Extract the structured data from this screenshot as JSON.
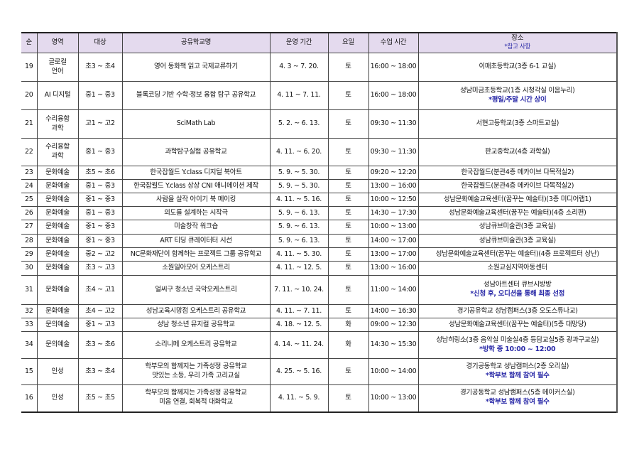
{
  "header": {
    "no": "순",
    "area": "영역",
    "target": "대상",
    "name": "공유학교명",
    "period": "운영 기간",
    "day": "요일",
    "time": "수업 시간",
    "place": "장소",
    "place_note": "*참고 사항"
  },
  "colors": {
    "header_bg": "#e4daee",
    "note": "#2b2ba8"
  },
  "rows": [
    {
      "no": "19",
      "area": [
        "글로컬",
        "언어"
      ],
      "target": "초3 ~ 초4",
      "name": [
        "영어 동화책 읽고 국제교류하기"
      ],
      "period": "4. 3 ~ 7. 20.",
      "day": "토",
      "time": "16:00 ~ 18:00",
      "place": "이매초등학교(3층 6-1 교실)",
      "note": ""
    },
    {
      "no": "20",
      "area": [
        "AI 디지털"
      ],
      "target": "중1 ~ 중3",
      "name": [
        "블록코딩 기반 수학·정보 융합 탐구 공유학교"
      ],
      "period": "4. 11 ~ 7. 11.",
      "day": "토",
      "time": "16:00 ~ 18:00",
      "place": "성남미금초등학교(1층 시청각실 이음누리)",
      "note": "*평일/주말 시간 상이"
    },
    {
      "no": "21",
      "area": [
        "수리융합",
        "과학"
      ],
      "target": "고1 ~ 고2",
      "name": [
        "SciMath Lab"
      ],
      "period": "5. 2. ~ 6. 13.",
      "day": "토",
      "time": "09:30 ~ 11:30",
      "place": "서현고등학교(3층 스마트교실)",
      "note": ""
    },
    {
      "no": "22",
      "area": [
        "수리융합",
        "과학"
      ],
      "target": "중1 ~ 중3",
      "name": [
        "과학탐구실험 공유학교"
      ],
      "period": "4. 11. ~ 6. 20.",
      "day": "토",
      "time": "09:30 ~ 11:30",
      "place": "판교중학교(4층 과학실)",
      "note": ""
    },
    {
      "no": "23",
      "area": [
        "문화예술"
      ],
      "target": "초5 ~ 초6",
      "name": [
        "한국잡월드 Y.class 디지털 북아트"
      ],
      "period": "5. 9. ~ 5. 30.",
      "day": "토",
      "time": "09:20 ~ 12:20",
      "place": "한국잡월드(분관4층 메카이브 다목적실2)",
      "note": ""
    },
    {
      "no": "24",
      "area": [
        "문화예술"
      ],
      "target": "중1 ~ 중3",
      "name": [
        "한국잡월드 Y.class 상상 CNI  애니메이션 제작"
      ],
      "period": "5. 9. ~ 5. 30.",
      "day": "토",
      "time": "13:00 ~ 16:00",
      "place": "한국잡월드(분관4층 메카이브 다목적실2)",
      "note": ""
    },
    {
      "no": "25",
      "area": [
        "문화예술"
      ],
      "target": "중1 ~ 중3",
      "name": [
        "사람을 살작 아이기 북 메이킹"
      ],
      "period": "4. 11. ~ 5. 16.",
      "day": "토",
      "time": "10:00 ~ 12:50",
      "place": "성남문화예술교육센터(꿈꾸는 예술터)(3층 미디어랩1)",
      "note": ""
    },
    {
      "no": "26",
      "area": [
        "문화예술"
      ],
      "target": "중1 ~ 중3",
      "name": [
        "의도를 설계하는 시작극"
      ],
      "period": "5. 9. ~ 6. 13.",
      "day": "토",
      "time": "14:30 ~ 17:30",
      "place": "성남문화예술교육센터(꿈꾸는 예술터)(4층 소리편)",
      "note": ""
    },
    {
      "no": "27",
      "area": [
        "문화예술"
      ],
      "target": "중1 ~ 중3",
      "name": [
        "미술창작 워크숍"
      ],
      "period": "5. 9. ~ 6. 13.",
      "day": "토",
      "time": "10:00 ~ 13:00",
      "place": "성남큐브미술관(3층 교육실)",
      "note": ""
    },
    {
      "no": "28",
      "area": [
        "문화예술"
      ],
      "target": "중1 ~ 중3",
      "name": [
        "ART 티딩 큐레이터터 시선"
      ],
      "period": "5. 9. ~ 6. 13.",
      "day": "토",
      "time": "14:00 ~ 17:00",
      "place": "성남큐브미술관(3층 교육실)",
      "note": ""
    },
    {
      "no": "29",
      "area": [
        "문화예술"
      ],
      "target": "중2 ~ 고2",
      "name": [
        "NC문화재단이 함께하는 프로젝트 그룹 공유학교"
      ],
      "period": "4. 11. ~ 5. 30.",
      "day": "토",
      "time": "13:00 ~ 17:00",
      "place": "성남문화예술교육센터(꿈꾸는 예술터)(4층 프로젝트터 상난)",
      "note": ""
    },
    {
      "no": "30",
      "area": [
        "문화예술"
      ],
      "target": "초3 ~ 고3",
      "name": [
        "소원일아모어 오케스트리"
      ],
      "period": "4. 11. ~ 12. 5.",
      "day": "토",
      "time": "13:00 ~ 16:00",
      "place": "소원교심지역아동센터",
      "note": ""
    },
    {
      "no": "31",
      "area": [
        "문화예술"
      ],
      "target": "초4 ~ 고1",
      "name": [
        "얼씨구 청소년 국악오케스트리"
      ],
      "period": "7. 11. ~ 10. 24.",
      "day": "토",
      "time": "11:00 ~ 14:00",
      "place": "성남아트센터 큐브시방방",
      "note": "*신청 후, 오디션을 통해 최종 선정"
    },
    {
      "no": "32",
      "area": [
        "문화예술"
      ],
      "target": "초4 ~ 고2",
      "name": [
        "성남교육시망점 오케스트리 공유학교"
      ],
      "period": "4. 11. ~ 7. 11.",
      "day": "토",
      "time": "14:00 ~ 16:30",
      "place": "경기공유학교 성남캠퍼스(3층 오도스튜나교)",
      "note": ""
    },
    {
      "no": "33",
      "area": [
        "문의예술"
      ],
      "target": "중1 ~ 고3",
      "name": [
        "성남 청소년 뮤지컬 공유학교"
      ],
      "period": "4. 18. ~ 12. 5.",
      "day": "화",
      "time": "09:00 ~ 12:30",
      "place": "성남문화예술교육센터(꿈꾸는 예술터)(5층 대망당)",
      "note": ""
    },
    {
      "no": "34",
      "area": [
        "문의예술"
      ],
      "target": "초3 ~ 초6",
      "name": [
        "소리니메 오케스트리 공유학교"
      ],
      "period": "4. 14. ~ 11. 24.",
      "day": "화",
      "time": "14:30 ~ 15:30",
      "place": "성남히링소(3층 음악실 미술실4층 등담교실5층 광과구교실)",
      "note": "*방학 중 10:00 ~ 12:00"
    },
    {
      "no": "15",
      "area": [
        "인성"
      ],
      "target": "초3 ~ 초4",
      "name": [
        "학부모의 함께지는 가족성정 공유학교",
        "맛있는 소등, 우리 가족 고리교실"
      ],
      "period": "4. 25. ~ 5. 16.",
      "day": "토",
      "time": "10:00 ~ 14:00",
      "place": "경기공동학교 성남캠퍼스(2층 오리실)",
      "note": "*학부보 함께 참여 필수"
    },
    {
      "no": "16",
      "area": [
        "인성"
      ],
      "target": "초5 ~ 초5",
      "name": [
        "학부모의 함께지는 가족성정 공유학교",
        "미음 연결, 회복적 대화학교"
      ],
      "period": "4. 11. ~ 5. 9.",
      "day": "토",
      "time": "10:00 ~ 13:00",
      "place": "경기공동학교 성남캠퍼스(5층 메이커스실)",
      "note": "*학부보 함께 참여 필수"
    }
  ]
}
